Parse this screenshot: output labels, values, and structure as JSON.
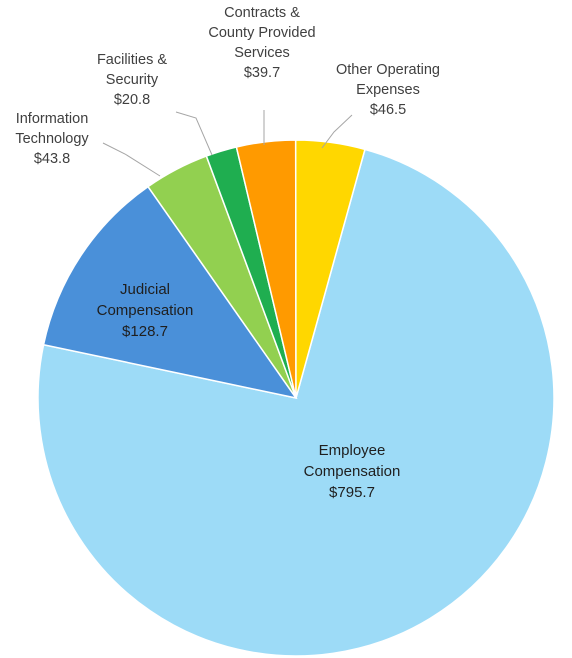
{
  "chart_data": {
    "type": "pie",
    "title": "",
    "slices": [
      {
        "label_lines": [
          "Employee",
          "Compensation"
        ],
        "value_text": "$795.7",
        "value": 795.7,
        "color": "#9ddbf7"
      },
      {
        "label_lines": [
          "Judicial",
          "Compensation"
        ],
        "value_text": "$128.7",
        "value": 128.7,
        "color": "#4a90d9"
      },
      {
        "label_lines": [
          "Information",
          "Technology"
        ],
        "value_text": "$43.8",
        "value": 43.8,
        "color": "#92d050"
      },
      {
        "label_lines": [
          "Facilities &",
          "Security"
        ],
        "value_text": "$20.8",
        "value": 20.8,
        "color": "#1fae50"
      },
      {
        "label_lines": [
          "Contracts &",
          "County Provided",
          "Services"
        ],
        "value_text": "$39.7",
        "value": 39.7,
        "color": "#ff9a00"
      },
      {
        "label_lines": [
          "Other Operating",
          "Expenses"
        ],
        "value_text": "$46.5",
        "value": 46.5,
        "color": "#ffd700"
      }
    ]
  }
}
